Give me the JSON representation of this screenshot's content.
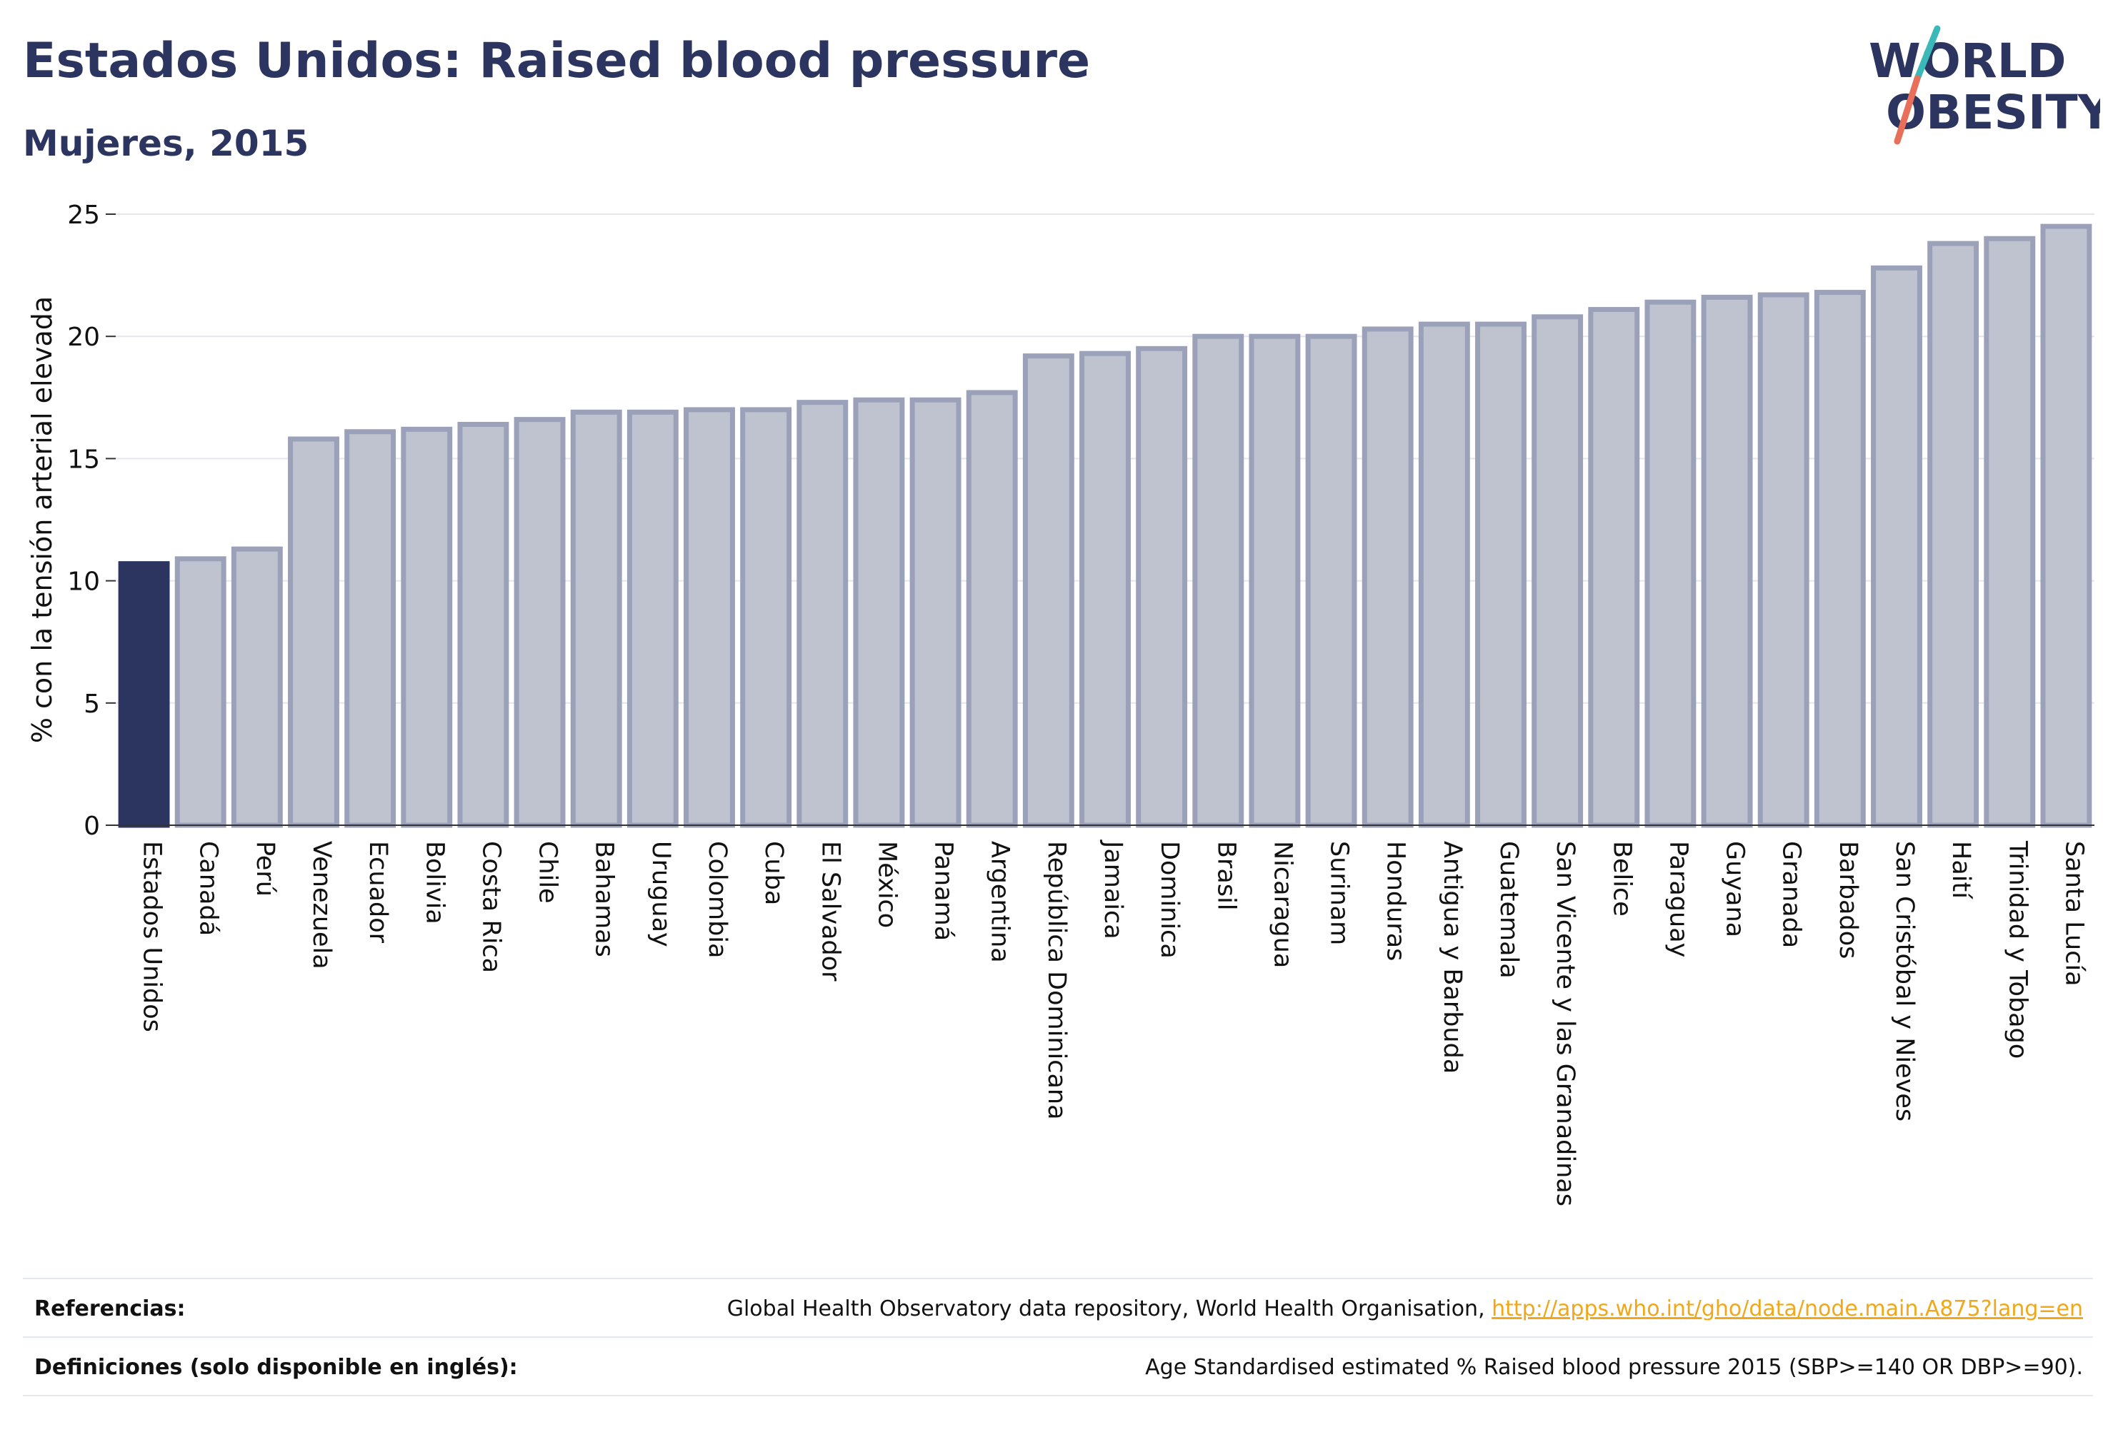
{
  "header": {
    "title": "Estados Unidos: Raised blood pressure",
    "subtitle": "Mujeres, 2015"
  },
  "logo": {
    "line1": "WORLD",
    "line2": "OBESITY",
    "accent_teal": "#3bb8b8",
    "accent_coral": "#e8705a",
    "text_color": "#2b3560"
  },
  "chart_data": {
    "type": "bar",
    "ylabel": "% con la tensión arterial elevada",
    "ylim": [
      0,
      25
    ],
    "yticks": [
      0,
      5,
      10,
      15,
      20,
      25
    ],
    "grid": true,
    "highlight_color": "#2b3560",
    "bar_color": "#bfc3d0",
    "bar_edge_color": "#9ba1b9",
    "categories": [
      "Estados Unidos",
      "Canadá",
      "Perú",
      "Venezuela",
      "Ecuador",
      "Bolivia",
      "Costa Rica",
      "Chile",
      "Bahamas",
      "Uruguay",
      "Colombia",
      "Cuba",
      "El Salvador",
      "México",
      "Panamá",
      "Argentina",
      "República Dominicana",
      "Jamaica",
      "Dominica",
      "Brasil",
      "Nicaragua",
      "Surinam",
      "Honduras",
      "Antigua y Barbuda",
      "Guatemala",
      "San Vicente y las Granadinas",
      "Belice",
      "Paraguay",
      "Guyana",
      "Granada",
      "Barbados",
      "San Cristóbal y Nieves",
      "Haití",
      "Trinidad y Tobago",
      "Santa Lucía"
    ],
    "values": [
      10.7,
      10.9,
      11.3,
      15.8,
      16.1,
      16.2,
      16.4,
      16.6,
      16.9,
      16.9,
      17.0,
      17.0,
      17.3,
      17.4,
      17.4,
      17.7,
      19.2,
      19.3,
      19.5,
      20.0,
      20.0,
      20.0,
      20.3,
      20.5,
      20.5,
      20.8,
      21.1,
      21.4,
      21.6,
      21.7,
      21.8,
      22.8,
      23.8,
      24.0,
      24.5
    ],
    "highlight_index": 0
  },
  "footer": {
    "references_label": "Referencias:",
    "references_text": "Global Health Observatory data repository, World Health Organisation, ",
    "references_link": "http://apps.who.int/gho/data/node.main.A875?lang=en",
    "definitions_label": "Definiciones (solo disponible en inglés):",
    "definitions_text": "Age Standardised estimated % Raised blood pressure 2015 (SBP>=140 OR DBP>=90)."
  }
}
